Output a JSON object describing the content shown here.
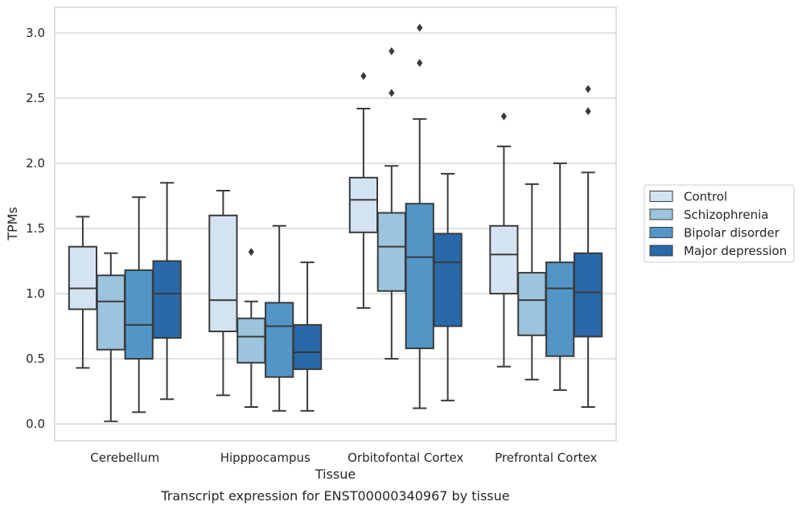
{
  "chart_data": {
    "type": "box",
    "xlabel": "Tissue",
    "ylabel": "TPMs",
    "caption": "Transcript expression for ENST00000340967 by tissue",
    "ylim": [
      -0.12,
      3.2
    ],
    "yticks": [
      "0.0",
      "0.5",
      "1.0",
      "1.5",
      "2.0",
      "2.5",
      "3.0"
    ],
    "grid": "horizontal",
    "legend_position": "right",
    "categories": [
      "Cerebellum",
      "Hipppocampus",
      "Orbitofontal Cortex",
      "Prefrontal Cortex"
    ],
    "series": [
      {
        "name": "Control",
        "color": "#d4e3f2",
        "boxes": [
          {
            "whislo": 0.43,
            "q1": 0.88,
            "med": 1.04,
            "q3": 1.36,
            "whishi": 1.59,
            "fliers": []
          },
          {
            "whislo": 0.22,
            "q1": 0.71,
            "med": 0.95,
            "q3": 1.6,
            "whishi": 1.79,
            "fliers": []
          },
          {
            "whislo": 0.89,
            "q1": 1.47,
            "med": 1.72,
            "q3": 1.89,
            "whishi": 2.42,
            "fliers": [
              2.67
            ]
          },
          {
            "whislo": 0.44,
            "q1": 1.0,
            "med": 1.3,
            "q3": 1.52,
            "whishi": 2.13,
            "fliers": [
              2.36
            ]
          }
        ]
      },
      {
        "name": "Schizophrenia",
        "color": "#9cc5dd",
        "boxes": [
          {
            "whislo": 0.02,
            "q1": 0.57,
            "med": 0.94,
            "q3": 1.14,
            "whishi": 1.31,
            "fliers": []
          },
          {
            "whislo": 0.13,
            "q1": 0.47,
            "med": 0.67,
            "q3": 0.81,
            "whishi": 0.94,
            "fliers": [
              1.32
            ]
          },
          {
            "whislo": 0.5,
            "q1": 1.02,
            "med": 1.36,
            "q3": 1.62,
            "whishi": 1.98,
            "fliers": [
              2.54,
              2.86
            ]
          },
          {
            "whislo": 0.34,
            "q1": 0.68,
            "med": 0.95,
            "q3": 1.16,
            "whishi": 1.84,
            "fliers": []
          }
        ]
      },
      {
        "name": "Bipolar disorder",
        "color": "#5296c7",
        "boxes": [
          {
            "whislo": 0.09,
            "q1": 0.5,
            "med": 0.76,
            "q3": 1.18,
            "whishi": 1.74,
            "fliers": []
          },
          {
            "whislo": 0.1,
            "q1": 0.36,
            "med": 0.75,
            "q3": 0.93,
            "whishi": 1.52,
            "fliers": []
          },
          {
            "whislo": 0.12,
            "q1": 0.58,
            "med": 1.28,
            "q3": 1.69,
            "whishi": 2.34,
            "fliers": [
              2.77,
              3.04
            ]
          },
          {
            "whislo": 0.26,
            "q1": 0.52,
            "med": 1.04,
            "q3": 1.24,
            "whishi": 2.0,
            "fliers": []
          }
        ]
      },
      {
        "name": "Major depression",
        "color": "#2a69a9",
        "boxes": [
          {
            "whislo": 0.19,
            "q1": 0.66,
            "med": 1.0,
            "q3": 1.25,
            "whishi": 1.85,
            "fliers": []
          },
          {
            "whislo": 0.1,
            "q1": 0.42,
            "med": 0.55,
            "q3": 0.76,
            "whishi": 1.24,
            "fliers": []
          },
          {
            "whislo": 0.18,
            "q1": 0.75,
            "med": 1.24,
            "q3": 1.46,
            "whishi": 1.92,
            "fliers": []
          },
          {
            "whislo": 0.13,
            "q1": 0.67,
            "med": 1.01,
            "q3": 1.31,
            "whishi": 1.93,
            "fliers": [
              2.4,
              2.57
            ]
          }
        ]
      }
    ]
  }
}
